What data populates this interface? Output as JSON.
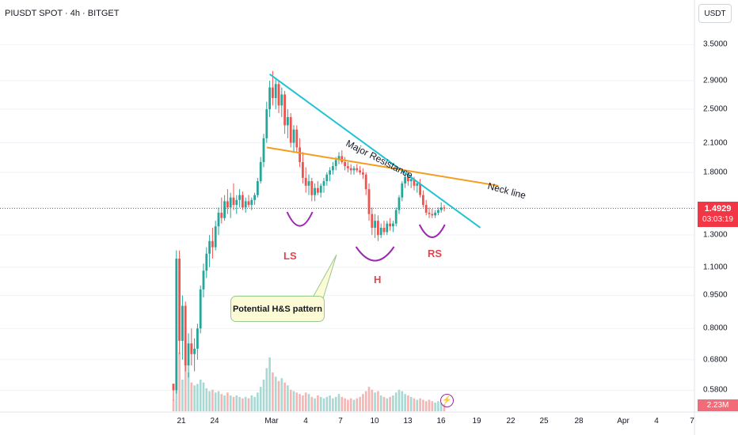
{
  "header": {
    "symbol": "PIUSDT SPOT · 4h · BITGET",
    "currency": "USDT"
  },
  "price_axis": {
    "ticks": [
      "3.5000",
      "2.9000",
      "2.5000",
      "2.1000",
      "1.8000",
      "1.5000",
      "1.3000",
      "1.1000",
      "0.9500",
      "0.8000",
      "0.6800",
      "0.5800"
    ]
  },
  "time_axis": {
    "ticks": [
      "21",
      "24",
      "Mar",
      "4",
      "7",
      "10",
      "13",
      "16",
      "19",
      "22",
      "25",
      "28",
      "Apr",
      "4",
      "7"
    ]
  },
  "last_price": {
    "value": "1.4929",
    "countdown": "03:03:19"
  },
  "volume": {
    "value": "2.23M"
  },
  "annotations": {
    "resistance_label": "Major Resistance",
    "neckline_label": "Neck line",
    "callout": "Potential H&S pattern",
    "left_shoulder": "LS",
    "head": "H",
    "right_shoulder": "RS"
  },
  "colors": {
    "up": "#26a69a",
    "down": "#ef5350",
    "resistance": "#22c3d1",
    "neckline": "#f59c1a",
    "arcs": "#9c27b0",
    "labels": "#e0454f"
  },
  "chart_data": {
    "type": "candlestick",
    "y_scale": "log",
    "ylim": [
      0.52,
      3.9
    ],
    "last_price": 1.4929,
    "candles": [
      [
        0.6,
        0.6,
        0.55,
        0.58
      ],
      [
        0.58,
        1.2,
        0.57,
        1.15
      ],
      [
        1.15,
        1.2,
        0.7,
        0.75
      ],
      [
        0.75,
        0.95,
        0.68,
        0.9
      ],
      [
        0.9,
        0.92,
        0.64,
        0.66
      ],
      [
        0.66,
        0.78,
        0.62,
        0.74
      ],
      [
        0.74,
        0.8,
        0.66,
        0.7
      ],
      [
        0.7,
        0.76,
        0.64,
        0.72
      ],
      [
        0.72,
        0.82,
        0.68,
        0.8
      ],
      [
        0.8,
        1.0,
        0.78,
        0.98
      ],
      [
        0.98,
        1.12,
        0.94,
        1.08
      ],
      [
        1.08,
        1.22,
        1.04,
        1.18
      ],
      [
        1.18,
        1.3,
        1.1,
        1.26
      ],
      [
        1.26,
        1.35,
        1.15,
        1.22
      ],
      [
        1.22,
        1.4,
        1.2,
        1.36
      ],
      [
        1.36,
        1.5,
        1.3,
        1.46
      ],
      [
        1.46,
        1.58,
        1.38,
        1.42
      ],
      [
        1.42,
        1.6,
        1.4,
        1.55
      ],
      [
        1.55,
        1.65,
        1.45,
        1.5
      ],
      [
        1.5,
        1.62,
        1.42,
        1.58
      ],
      [
        1.58,
        1.7,
        1.48,
        1.52
      ],
      [
        1.52,
        1.6,
        1.45,
        1.56
      ],
      [
        1.56,
        1.65,
        1.5,
        1.6
      ],
      [
        1.6,
        1.63,
        1.48,
        1.5
      ],
      [
        1.5,
        1.58,
        1.46,
        1.55
      ],
      [
        1.55,
        1.6,
        1.5,
        1.52
      ],
      [
        1.52,
        1.58,
        1.48,
        1.56
      ],
      [
        1.56,
        1.62,
        1.52,
        1.6
      ],
      [
        1.6,
        1.75,
        1.58,
        1.72
      ],
      [
        1.72,
        1.95,
        1.7,
        1.9
      ],
      [
        1.9,
        2.2,
        1.85,
        2.15
      ],
      [
        2.15,
        2.6,
        2.1,
        2.5
      ],
      [
        2.5,
        2.9,
        2.4,
        2.8
      ],
      [
        2.8,
        3.05,
        2.55,
        2.65
      ],
      [
        2.65,
        2.95,
        2.5,
        2.85
      ],
      [
        2.85,
        2.9,
        2.45,
        2.55
      ],
      [
        2.55,
        2.8,
        2.4,
        2.7
      ],
      [
        2.7,
        2.75,
        2.2,
        2.3
      ],
      [
        2.3,
        2.5,
        2.15,
        2.4
      ],
      [
        2.4,
        2.45,
        2.05,
        2.1
      ],
      [
        2.1,
        2.3,
        2.0,
        2.25
      ],
      [
        2.25,
        2.3,
        2.0,
        2.05
      ],
      [
        2.05,
        2.15,
        1.85,
        1.9
      ],
      [
        1.9,
        2.0,
        1.7,
        1.75
      ],
      [
        1.75,
        1.85,
        1.62,
        1.68
      ],
      [
        1.68,
        1.78,
        1.6,
        1.72
      ],
      [
        1.72,
        1.75,
        1.55,
        1.6
      ],
      [
        1.6,
        1.7,
        1.55,
        1.66
      ],
      [
        1.66,
        1.72,
        1.6,
        1.62
      ],
      [
        1.62,
        1.7,
        1.58,
        1.68
      ],
      [
        1.68,
        1.75,
        1.62,
        1.72
      ],
      [
        1.72,
        1.8,
        1.68,
        1.78
      ],
      [
        1.78,
        1.85,
        1.72,
        1.82
      ],
      [
        1.82,
        1.9,
        1.78,
        1.86
      ],
      [
        1.86,
        1.95,
        1.82,
        1.92
      ],
      [
        1.92,
        2.0,
        1.88,
        1.96
      ],
      [
        1.96,
        2.02,
        1.88,
        1.9
      ],
      [
        1.9,
        1.95,
        1.82,
        1.86
      ],
      [
        1.86,
        1.9,
        1.8,
        1.84
      ],
      [
        1.84,
        1.88,
        1.78,
        1.82
      ],
      [
        1.82,
        1.86,
        1.78,
        1.84
      ],
      [
        1.84,
        1.88,
        1.8,
        1.82
      ],
      [
        1.82,
        1.86,
        1.78,
        1.8
      ],
      [
        1.8,
        1.84,
        1.74,
        1.78
      ],
      [
        1.78,
        1.8,
        1.6,
        1.65
      ],
      [
        1.65,
        1.7,
        1.4,
        1.45
      ],
      [
        1.45,
        1.5,
        1.3,
        1.35
      ],
      [
        1.35,
        1.45,
        1.28,
        1.4
      ],
      [
        1.4,
        1.44,
        1.26,
        1.3
      ],
      [
        1.3,
        1.38,
        1.28,
        1.35
      ],
      [
        1.35,
        1.4,
        1.3,
        1.32
      ],
      [
        1.32,
        1.4,
        1.3,
        1.38
      ],
      [
        1.38,
        1.42,
        1.33,
        1.36
      ],
      [
        1.36,
        1.4,
        1.32,
        1.38
      ],
      [
        1.38,
        1.5,
        1.36,
        1.48
      ],
      [
        1.48,
        1.6,
        1.45,
        1.58
      ],
      [
        1.58,
        1.72,
        1.55,
        1.7
      ],
      [
        1.7,
        1.8,
        1.66,
        1.76
      ],
      [
        1.76,
        1.82,
        1.68,
        1.72
      ],
      [
        1.72,
        1.78,
        1.66,
        1.74
      ],
      [
        1.74,
        1.76,
        1.64,
        1.68
      ],
      [
        1.68,
        1.72,
        1.62,
        1.7
      ],
      [
        1.7,
        1.74,
        1.58,
        1.6
      ],
      [
        1.6,
        1.64,
        1.5,
        1.52
      ],
      [
        1.52,
        1.56,
        1.44,
        1.46
      ],
      [
        1.46,
        1.5,
        1.42,
        1.45
      ],
      [
        1.45,
        1.49,
        1.42,
        1.44
      ],
      [
        1.44,
        1.48,
        1.42,
        1.46
      ],
      [
        1.46,
        1.5,
        1.44,
        1.48
      ],
      [
        1.48,
        1.54,
        1.46,
        1.5
      ],
      [
        1.5,
        1.52,
        1.47,
        1.4929
      ]
    ],
    "volumes": [
      16,
      108,
      82,
      44,
      64,
      54,
      40,
      36,
      38,
      44,
      40,
      32,
      28,
      30,
      26,
      28,
      24,
      22,
      26,
      22,
      20,
      22,
      20,
      18,
      20,
      18,
      22,
      20,
      26,
      34,
      44,
      60,
      75,
      54,
      48,
      42,
      46,
      40,
      36,
      30,
      28,
      26,
      24,
      22,
      26,
      24,
      20,
      18,
      22,
      20,
      18,
      20,
      22,
      18,
      20,
      24,
      20,
      18,
      16,
      18,
      16,
      18,
      20,
      24,
      28,
      34,
      30,
      26,
      28,
      22,
      20,
      18,
      20,
      22,
      26,
      30,
      28,
      24,
      22,
      20,
      18,
      16,
      18,
      16,
      14,
      16,
      14,
      12,
      14,
      12,
      10
    ],
    "volume_max": 110,
    "trendlines": {
      "major_resistance": [
        [
          32,
          3.0
        ],
        [
          102,
          1.35
        ]
      ],
      "neckline": [
        [
          31,
          2.05
        ],
        [
          108,
          1.68
        ]
      ]
    },
    "pattern": {
      "left_shoulder": 42,
      "head": 67,
      "right_shoulder": 86
    }
  }
}
